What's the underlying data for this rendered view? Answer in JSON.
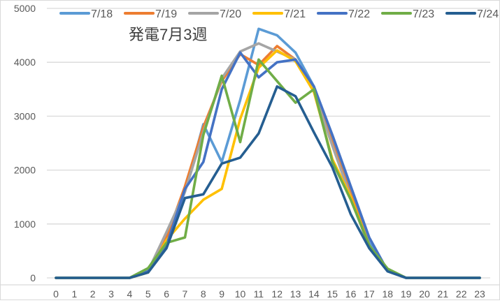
{
  "chart_data": {
    "type": "line",
    "title": "発電7月3週",
    "xlabel": "",
    "ylabel": "",
    "x": [
      0,
      1,
      2,
      3,
      4,
      5,
      6,
      7,
      8,
      9,
      10,
      11,
      12,
      13,
      14,
      15,
      16,
      17,
      18,
      19,
      20,
      21,
      22,
      23
    ],
    "ylim": [
      0,
      5000
    ],
    "yticks": [
      0,
      1000,
      2000,
      3000,
      4000,
      5000
    ],
    "grid": true,
    "legend_position": "top",
    "series": [
      {
        "name": "7/18",
        "color": "#5b9bd5",
        "values": [
          0,
          0,
          0,
          0,
          0,
          120,
          700,
          1600,
          2850,
          2150,
          3300,
          4620,
          4500,
          4180,
          3550,
          2600,
          1600,
          650,
          130,
          0,
          0,
          0,
          0,
          0
        ]
      },
      {
        "name": "7/19",
        "color": "#ed7d31",
        "values": [
          0,
          0,
          0,
          0,
          0,
          110,
          750,
          1700,
          2800,
          3650,
          4150,
          3950,
          4300,
          4050,
          3450,
          2500,
          1550,
          600,
          130,
          0,
          0,
          0,
          0,
          0
        ]
      },
      {
        "name": "7/20",
        "color": "#a5a5a5",
        "values": [
          0,
          0,
          0,
          0,
          0,
          130,
          850,
          1600,
          2700,
          3700,
          4200,
          4350,
          4200,
          4050,
          3450,
          2450,
          1500,
          550,
          130,
          0,
          0,
          0,
          0,
          0
        ]
      },
      {
        "name": "7/21",
        "color": "#ffc000",
        "values": [
          0,
          0,
          0,
          0,
          0,
          100,
          700,
          1100,
          1450,
          1650,
          2950,
          3900,
          4220,
          4020,
          3450,
          2200,
          1500,
          600,
          150,
          0,
          0,
          0,
          0,
          0
        ]
      },
      {
        "name": "7/22",
        "color": "#4472c4",
        "values": [
          0,
          0,
          0,
          0,
          0,
          120,
          600,
          1650,
          2150,
          3500,
          4180,
          3720,
          4000,
          4050,
          3550,
          2650,
          1700,
          750,
          130,
          0,
          0,
          0,
          0,
          0
        ]
      },
      {
        "name": "7/23",
        "color": "#70ad47",
        "values": [
          0,
          0,
          0,
          0,
          0,
          180,
          650,
          750,
          2650,
          3750,
          2520,
          4050,
          3650,
          3250,
          3500,
          2150,
          1450,
          600,
          170,
          0,
          0,
          0,
          0,
          0
        ]
      },
      {
        "name": "7/24",
        "color": "#255e91",
        "values": [
          0,
          0,
          0,
          0,
          0,
          100,
          550,
          1480,
          1550,
          2120,
          2230,
          2680,
          3550,
          3370,
          2700,
          2050,
          1180,
          550,
          120,
          0,
          0,
          0,
          0,
          0
        ]
      }
    ]
  },
  "title": "発電7月3週",
  "legend": [
    "7/18",
    "7/19",
    "7/20",
    "7/21",
    "7/22",
    "7/23",
    "7/24"
  ]
}
